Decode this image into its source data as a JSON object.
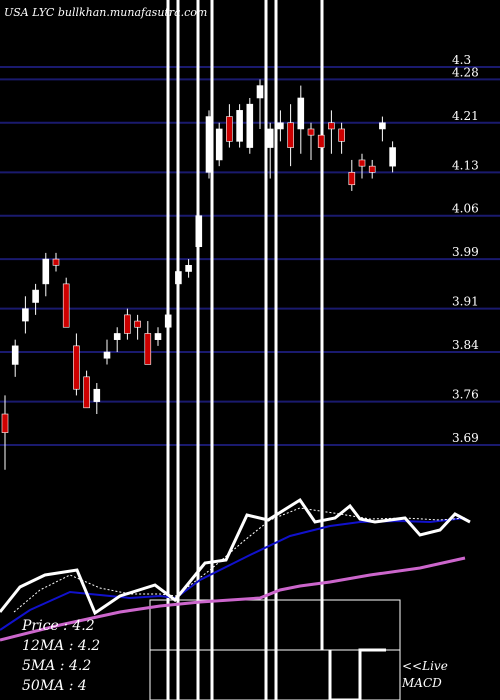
{
  "watermark": "USA LYC bullkhan.munafasutra.com",
  "legend": {
    "price": "Price  : 4.2",
    "ma12": "12MA : 4.2",
    "ma5": "5MA : 4.2",
    "ma50": "50MA : 4"
  },
  "live_label": "<<Live",
  "macd_label": "MACD",
  "colors": {
    "background": "#000000",
    "gridline": "#1a1a6e",
    "up_candle": "#ffffff",
    "down_candle": "#cc0000",
    "price_line": "#ffffff",
    "ma_blue": "#1111cc",
    "ma_pink": "#cc66cc",
    "ma_dotted": "#ffffff"
  },
  "chart_data": {
    "type": "candlestick",
    "y_ticks": [
      "4.3",
      "4.28",
      "4.21",
      "4.13",
      "4.06",
      "3.99",
      "3.91",
      "3.84",
      "3.76",
      "3.69"
    ],
    "y_tick_values": [
      4.3,
      4.28,
      4.21,
      4.13,
      4.06,
      3.99,
      3.91,
      3.84,
      3.76,
      3.69
    ],
    "grid": true,
    "candles": [
      {
        "open": 3.74,
        "high": 3.77,
        "low": 3.65,
        "close": 3.71
      },
      {
        "open": 3.82,
        "high": 3.86,
        "low": 3.8,
        "close": 3.85
      },
      {
        "open": 3.89,
        "high": 3.93,
        "low": 3.87,
        "close": 3.91
      },
      {
        "open": 3.92,
        "high": 3.95,
        "low": 3.9,
        "close": 3.94
      },
      {
        "open": 3.95,
        "high": 4.0,
        "low": 3.93,
        "close": 3.99
      },
      {
        "open": 3.99,
        "high": 4.0,
        "low": 3.97,
        "close": 3.98
      },
      {
        "open": 3.95,
        "high": 3.96,
        "low": 3.88,
        "close": 3.88
      },
      {
        "open": 3.85,
        "high": 3.87,
        "low": 3.77,
        "close": 3.78
      },
      {
        "open": 3.8,
        "high": 3.81,
        "low": 3.75,
        "close": 3.75
      },
      {
        "open": 3.76,
        "high": 3.79,
        "low": 3.74,
        "close": 3.78
      },
      {
        "open": 3.83,
        "high": 3.86,
        "low": 3.82,
        "close": 3.84
      },
      {
        "open": 3.86,
        "high": 3.88,
        "low": 3.84,
        "close": 3.87
      },
      {
        "open": 3.9,
        "high": 3.91,
        "low": 3.86,
        "close": 3.87
      },
      {
        "open": 3.89,
        "high": 3.9,
        "low": 3.86,
        "close": 3.88
      },
      {
        "open": 3.87,
        "high": 3.89,
        "low": 3.82,
        "close": 3.82
      },
      {
        "open": 3.86,
        "high": 3.88,
        "low": 3.85,
        "close": 3.87
      },
      {
        "open": 3.88,
        "high": 3.91,
        "low": 3.87,
        "close": 3.9
      },
      {
        "open": 3.95,
        "high": 3.99,
        "low": 3.94,
        "close": 3.97
      },
      {
        "open": 3.97,
        "high": 3.99,
        "low": 3.96,
        "close": 3.98
      },
      {
        "open": 4.01,
        "high": 4.07,
        "low": 4.0,
        "close": 4.06
      },
      {
        "open": 4.13,
        "high": 4.23,
        "low": 4.12,
        "close": 4.22
      },
      {
        "open": 4.15,
        "high": 4.21,
        "low": 4.14,
        "close": 4.2
      },
      {
        "open": 4.22,
        "high": 4.24,
        "low": 4.17,
        "close": 4.18
      },
      {
        "open": 4.18,
        "high": 4.24,
        "low": 4.17,
        "close": 4.23
      },
      {
        "open": 4.17,
        "high": 4.25,
        "low": 4.16,
        "close": 4.24
      },
      {
        "open": 4.25,
        "high": 4.28,
        "low": 4.2,
        "close": 4.27
      },
      {
        "open": 4.17,
        "high": 4.21,
        "low": 4.12,
        "close": 4.2
      },
      {
        "open": 4.2,
        "high": 4.23,
        "low": 4.18,
        "close": 4.21
      },
      {
        "open": 4.21,
        "high": 4.24,
        "low": 4.14,
        "close": 4.17
      },
      {
        "open": 4.2,
        "high": 4.27,
        "low": 4.16,
        "close": 4.25
      },
      {
        "open": 4.2,
        "high": 4.21,
        "low": 4.15,
        "close": 4.19
      },
      {
        "open": 4.19,
        "high": 4.22,
        "low": 4.16,
        "close": 4.17
      },
      {
        "open": 4.21,
        "high": 4.23,
        "low": 4.16,
        "close": 4.2
      },
      {
        "open": 4.2,
        "high": 4.21,
        "low": 4.16,
        "close": 4.18
      },
      {
        "open": 4.13,
        "high": 4.15,
        "low": 4.1,
        "close": 4.11
      },
      {
        "open": 4.15,
        "high": 4.16,
        "low": 4.12,
        "close": 4.14
      },
      {
        "open": 4.14,
        "high": 4.15,
        "low": 4.12,
        "close": 4.13
      },
      {
        "open": 4.2,
        "high": 4.22,
        "low": 4.18,
        "close": 4.21
      },
      {
        "open": 4.14,
        "high": 4.18,
        "low": 4.13,
        "close": 4.17
      }
    ]
  }
}
